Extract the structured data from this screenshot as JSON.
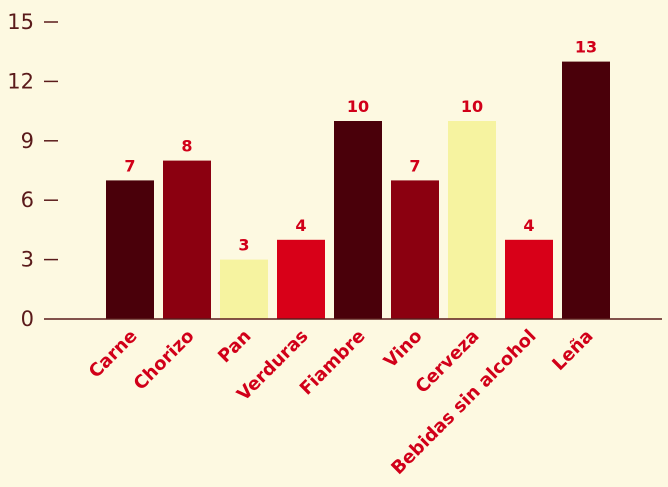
{
  "colors": {
    "background": "#fdf9e1",
    "axis": "#5a1a1a",
    "label": "#d10019",
    "palette": [
      "#4a000a",
      "#8b0010",
      "#f6f3a0",
      "#d80018"
    ]
  },
  "chart_data": {
    "type": "bar",
    "categories": [
      "Carne",
      "Chorizo",
      "Pan",
      "Verduras",
      "Fiambre",
      "Vino",
      "Cerveza",
      "Bebidas sin alcohol",
      "Leña"
    ],
    "values": [
      7,
      8,
      3,
      4,
      10,
      7,
      10,
      4,
      13
    ],
    "bar_colors": [
      "#4a000a",
      "#8b0010",
      "#f6f3a0",
      "#d80018",
      "#4a000a",
      "#8b0010",
      "#f6f3a0",
      "#d80018",
      "#4a000a"
    ],
    "yticks": [
      0,
      3,
      6,
      9,
      12,
      15
    ],
    "ylim": [
      0,
      15
    ],
    "title": "",
    "xlabel": "",
    "ylabel": "",
    "grid": false,
    "data_labels": true
  }
}
